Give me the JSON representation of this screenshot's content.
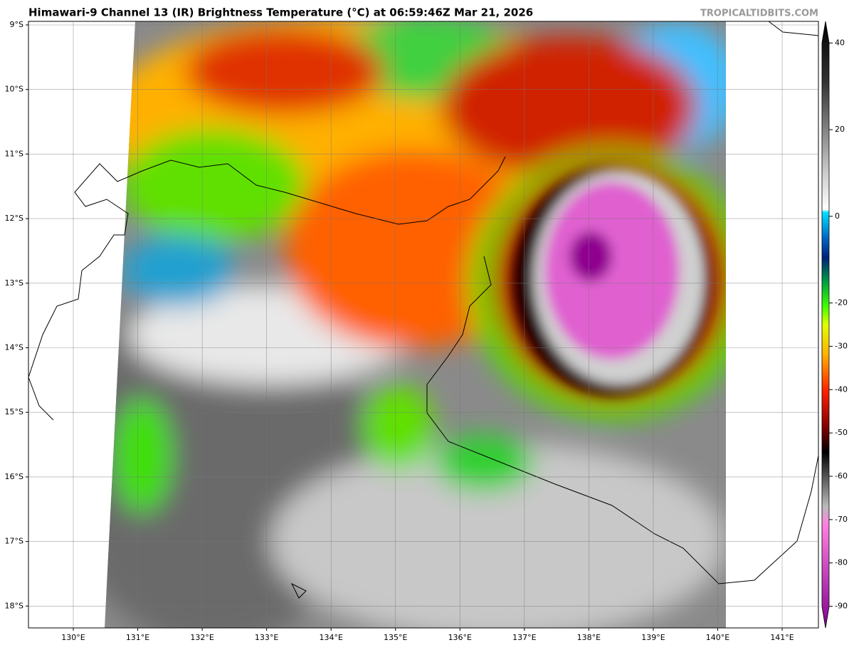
{
  "header": {
    "title": "Himawari-9 Channel 13 (IR) Brightness Temperature (°C) at 06:59:46Z Mar 21, 2026",
    "watermark": "TROPICALTIDBITS.COM"
  },
  "map": {
    "lat_labels": [
      "9°S",
      "10°S",
      "11°S",
      "12°S",
      "13°S",
      "14°S",
      "15°S",
      "16°S",
      "17°S",
      "18°S"
    ],
    "lon_labels": [
      "130°E",
      "131°E",
      "132°E",
      "133°E",
      "134°E",
      "135°E",
      "136°E",
      "137°E",
      "138°E",
      "139°E",
      "140°E",
      "141°E"
    ]
  },
  "colorbar": {
    "lim": [
      -95,
      45
    ],
    "ticks": [
      40,
      20,
      0,
      -20,
      -30,
      -40,
      -50,
      -60,
      -70,
      -80,
      -90
    ]
  }
}
